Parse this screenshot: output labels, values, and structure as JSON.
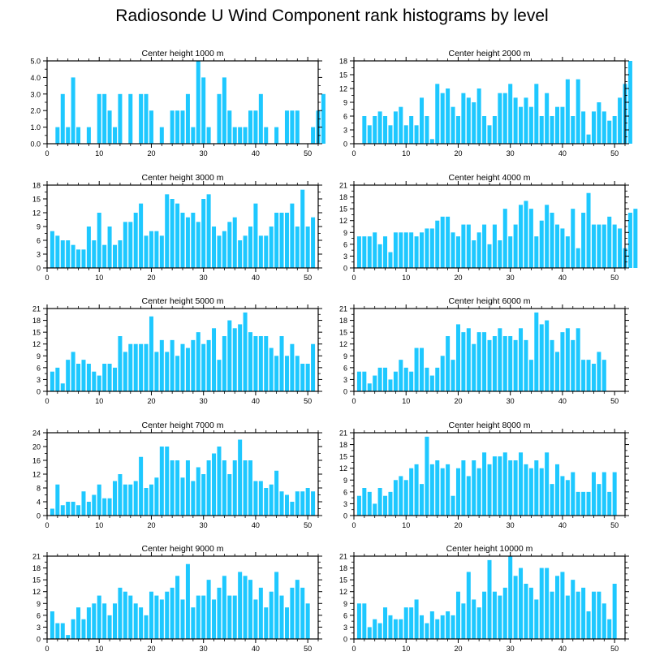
{
  "title": "Radiosonde U Wind Component rank histograms by level",
  "bar_color": "#1ec8ff",
  "chart_data": [
    {
      "type": "bar",
      "title": "Center height 1000 m",
      "ylim": [
        0,
        5
      ],
      "yticks": [
        0,
        1,
        2,
        3,
        4,
        5
      ],
      "ytick_labels": [
        "0.0",
        "1.0",
        "2.0",
        "3.0",
        "4.0",
        "5.0"
      ],
      "xlim": [
        0,
        52
      ],
      "xticks": [
        0,
        10,
        20,
        30,
        40,
        50
      ],
      "values": [
        0,
        1,
        3,
        1,
        4,
        1,
        0,
        1,
        0,
        3,
        3,
        2,
        1,
        3,
        0,
        3,
        0,
        3,
        3,
        2,
        0,
        1,
        0,
        2,
        2,
        2,
        3,
        1,
        5,
        4,
        1,
        0,
        3,
        4,
        2,
        1,
        1,
        1,
        2,
        2,
        3,
        1,
        0,
        1,
        0,
        2,
        2,
        2,
        0,
        0,
        1,
        2,
        3
      ]
    },
    {
      "type": "bar",
      "title": "Center height 2000 m",
      "ylim": [
        0,
        18
      ],
      "yticks": [
        0,
        3,
        6,
        9,
        12,
        15,
        18
      ],
      "ytick_labels": [
        "0",
        "3",
        "6",
        "9",
        "12",
        "15",
        "18"
      ],
      "xlim": [
        0,
        52
      ],
      "xticks": [
        0,
        10,
        20,
        30,
        40,
        50
      ],
      "values": [
        0,
        6,
        4,
        6,
        7,
        6,
        4,
        7,
        8,
        4,
        6,
        4,
        10,
        6,
        1,
        13,
        11,
        12,
        8,
        6,
        11,
        10,
        9,
        12,
        6,
        4,
        6,
        11,
        11,
        13,
        10,
        8,
        10,
        8,
        13,
        6,
        11,
        6,
        8,
        8,
        14,
        6,
        14,
        7,
        2,
        7,
        9,
        7,
        5,
        6,
        10,
        13,
        18
      ]
    },
    {
      "type": "bar",
      "title": "Center height 3000 m",
      "ylim": [
        0,
        18
      ],
      "yticks": [
        0,
        3,
        6,
        9,
        12,
        15,
        18
      ],
      "ytick_labels": [
        "0",
        "3",
        "6",
        "9",
        "12",
        "15",
        "18"
      ],
      "xlim": [
        0,
        52
      ],
      "xticks": [
        0,
        10,
        20,
        30,
        40,
        50
      ],
      "values": [
        8,
        7,
        6,
        6,
        5,
        4,
        4,
        9,
        6,
        12,
        5,
        9,
        5,
        6,
        10,
        10,
        12,
        14,
        7,
        8,
        8,
        7,
        16,
        15,
        14,
        12,
        11,
        12,
        10,
        15,
        16,
        9,
        7,
        8,
        10,
        11,
        6,
        7,
        9,
        14,
        7,
        7,
        9,
        12,
        12,
        12,
        14,
        9,
        17,
        9,
        11,
        0,
        0
      ]
    },
    {
      "type": "bar",
      "title": "Center height 4000 m",
      "ylim": [
        0,
        21
      ],
      "yticks": [
        0,
        3,
        6,
        9,
        12,
        15,
        18,
        21
      ],
      "ytick_labels": [
        "0",
        "3",
        "6",
        "9",
        "12",
        "15",
        "18",
        "21"
      ],
      "xlim": [
        0,
        52
      ],
      "xticks": [
        0,
        10,
        20,
        30,
        40,
        50
      ],
      "values": [
        8,
        8,
        8,
        9,
        6,
        8,
        4,
        9,
        9,
        9,
        9,
        8,
        9,
        10,
        10,
        12,
        13,
        13,
        9,
        8,
        11,
        11,
        7,
        9,
        11,
        6,
        11,
        7,
        15,
        8,
        11,
        16,
        17,
        15,
        8,
        12,
        16,
        14,
        11,
        10,
        8,
        15,
        5,
        14,
        19,
        11,
        11,
        11,
        13,
        11,
        10,
        5,
        14,
        15
      ]
    },
    {
      "type": "bar",
      "title": "Center height 5000 m",
      "ylim": [
        0,
        21
      ],
      "yticks": [
        0,
        3,
        6,
        9,
        12,
        15,
        18,
        21
      ],
      "ytick_labels": [
        "0",
        "3",
        "6",
        "9",
        "12",
        "15",
        "18",
        "21"
      ],
      "xlim": [
        0,
        52
      ],
      "xticks": [
        0,
        10,
        20,
        30,
        40,
        50
      ],
      "values": [
        5,
        6,
        2,
        8,
        10,
        7,
        8,
        7,
        5,
        4,
        7,
        7,
        6,
        14,
        10,
        12,
        12,
        12,
        12,
        19,
        10,
        13,
        10,
        13,
        9,
        12,
        11,
        13,
        15,
        12,
        13,
        16,
        8,
        14,
        18,
        16,
        17,
        20,
        15,
        14,
        14,
        14,
        11,
        9,
        14,
        9,
        12,
        9,
        7,
        7,
        12,
        0,
        0
      ]
    },
    {
      "type": "bar",
      "title": "Center height 6000 m",
      "ylim": [
        0,
        21
      ],
      "yticks": [
        0,
        3,
        6,
        9,
        12,
        15,
        18,
        21
      ],
      "ytick_labels": [
        "0",
        "3",
        "6",
        "9",
        "12",
        "15",
        "18",
        "21"
      ],
      "xlim": [
        0,
        52
      ],
      "xticks": [
        0,
        10,
        20,
        30,
        40,
        50
      ],
      "values": [
        5,
        5,
        2,
        4,
        6,
        6,
        3,
        5,
        8,
        6,
        5,
        11,
        11,
        6,
        4,
        6,
        9,
        14,
        8,
        17,
        15,
        16,
        12,
        15,
        15,
        13,
        14,
        16,
        14,
        14,
        13,
        16,
        13,
        8,
        20,
        17,
        18,
        13,
        10,
        15,
        16,
        13,
        16,
        8,
        8,
        7,
        10,
        8,
        0,
        0,
        0,
        0,
        0
      ]
    },
    {
      "type": "bar",
      "title": "Center height 7000 m",
      "ylim": [
        0,
        24
      ],
      "yticks": [
        0,
        4,
        8,
        12,
        16,
        20,
        24
      ],
      "ytick_labels": [
        "0",
        "4",
        "8",
        "12",
        "16",
        "20",
        "24"
      ],
      "xlim": [
        0,
        52
      ],
      "xticks": [
        0,
        10,
        20,
        30,
        40,
        50
      ],
      "values": [
        2,
        9,
        3,
        4,
        4,
        3,
        7,
        4,
        6,
        9,
        5,
        5,
        10,
        12,
        9,
        9,
        10,
        17,
        8,
        9,
        11,
        20,
        20,
        16,
        16,
        11,
        16,
        10,
        14,
        12,
        16,
        18,
        20,
        16,
        12,
        16,
        22,
        16,
        16,
        10,
        10,
        8,
        9,
        13,
        7,
        6,
        4,
        7,
        7,
        8,
        7,
        0,
        0
      ]
    },
    {
      "type": "bar",
      "title": "Center height 8000 m",
      "ylim": [
        0,
        21
      ],
      "yticks": [
        0,
        3,
        6,
        9,
        12,
        15,
        18,
        21
      ],
      "ytick_labels": [
        "0",
        "3",
        "6",
        "9",
        "12",
        "15",
        "18",
        "21"
      ],
      "xlim": [
        0,
        52
      ],
      "xticks": [
        0,
        10,
        20,
        30,
        40,
        50
      ],
      "values": [
        5,
        7,
        6,
        3,
        7,
        5,
        6,
        9,
        10,
        9,
        12,
        13,
        8,
        20,
        13,
        14,
        12,
        13,
        5,
        12,
        14,
        10,
        14,
        12,
        16,
        13,
        15,
        15,
        16,
        14,
        14,
        16,
        13,
        12,
        14,
        12,
        16,
        8,
        13,
        10,
        9,
        11,
        6,
        6,
        6,
        11,
        8,
        11,
        6,
        11,
        0,
        0
      ]
    },
    {
      "type": "bar",
      "title": "Center height 9000 m",
      "ylim": [
        0,
        21
      ],
      "yticks": [
        0,
        3,
        6,
        9,
        12,
        15,
        18,
        21
      ],
      "ytick_labels": [
        "0",
        "3",
        "6",
        "9",
        "12",
        "15",
        "18",
        "21"
      ],
      "xlim": [
        0,
        52
      ],
      "xticks": [
        0,
        10,
        20,
        30,
        40,
        50
      ],
      "values": [
        7,
        4,
        4,
        1,
        5,
        8,
        5,
        8,
        9,
        11,
        9,
        6,
        9,
        13,
        12,
        11,
        9,
        8,
        6,
        12,
        11,
        10,
        12,
        13,
        16,
        10,
        19,
        8,
        11,
        11,
        15,
        10,
        13,
        16,
        11,
        11,
        17,
        16,
        15,
        10,
        13,
        8,
        12,
        17,
        11,
        8,
        13,
        15,
        13,
        9,
        0,
        0
      ]
    },
    {
      "type": "bar",
      "title": "Center height 10000 m",
      "ylim": [
        0,
        21
      ],
      "yticks": [
        0,
        3,
        6,
        9,
        12,
        15,
        18,
        21
      ],
      "ytick_labels": [
        "0",
        "3",
        "6",
        "9",
        "12",
        "15",
        "18",
        "21"
      ],
      "xlim": [
        0,
        52
      ],
      "xticks": [
        0,
        10,
        20,
        30,
        40,
        50
      ],
      "values": [
        9,
        9,
        3,
        5,
        4,
        8,
        6,
        5,
        5,
        8,
        8,
        10,
        6,
        4,
        7,
        5,
        6,
        7,
        6,
        12,
        9,
        17,
        10,
        8,
        12,
        20,
        12,
        11,
        13,
        21,
        16,
        18,
        14,
        13,
        10,
        18,
        18,
        12,
        16,
        17,
        11,
        15,
        12,
        13,
        7,
        12,
        12,
        9,
        5,
        14,
        0,
        0
      ]
    }
  ]
}
